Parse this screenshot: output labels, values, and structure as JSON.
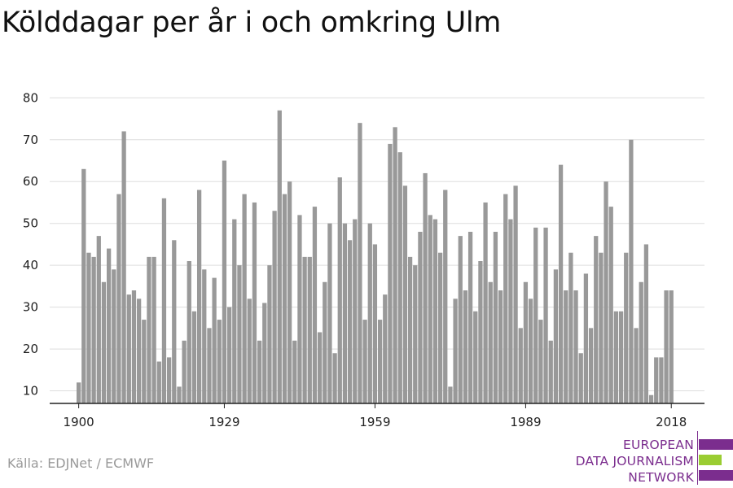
{
  "title": "Kölddagar per år i och omkring Ulm",
  "source": "Källa: EDJNet / ECMWF",
  "logo": {
    "lines": [
      "EUROPEAN",
      "DATA JOURNALISM",
      "NETWORK"
    ],
    "colors": {
      "purple": "#7b2d8e",
      "green": "#9acd32"
    }
  },
  "colors": {
    "bar": "#999999",
    "grid": "#dddddd",
    "axis": "#222222",
    "text": "#222222"
  },
  "chart_data": {
    "type": "bar",
    "title": "Kölddagar per år i och omkring Ulm",
    "xlabel": "",
    "ylabel": "",
    "ylim": [
      7,
      82
    ],
    "yticks": [
      10,
      20,
      30,
      40,
      50,
      60,
      70,
      80
    ],
    "xticks": [
      1900,
      1929,
      1959,
      1989,
      2018
    ],
    "grid": true,
    "x": [
      1900,
      1901,
      1902,
      1903,
      1904,
      1905,
      1906,
      1907,
      1908,
      1909,
      1910,
      1911,
      1912,
      1913,
      1914,
      1915,
      1916,
      1917,
      1918,
      1919,
      1920,
      1921,
      1922,
      1923,
      1924,
      1925,
      1926,
      1927,
      1928,
      1929,
      1930,
      1931,
      1932,
      1933,
      1934,
      1935,
      1936,
      1937,
      1938,
      1939,
      1940,
      1941,
      1942,
      1943,
      1944,
      1945,
      1946,
      1947,
      1948,
      1949,
      1950,
      1951,
      1952,
      1953,
      1954,
      1955,
      1956,
      1957,
      1958,
      1959,
      1960,
      1961,
      1962,
      1963,
      1964,
      1965,
      1966,
      1967,
      1968,
      1969,
      1970,
      1971,
      1972,
      1973,
      1974,
      1975,
      1976,
      1977,
      1978,
      1979,
      1980,
      1981,
      1982,
      1983,
      1984,
      1985,
      1986,
      1987,
      1988,
      1989,
      1990,
      1991,
      1992,
      1993,
      1994,
      1995,
      1996,
      1997,
      1998,
      1999,
      2000,
      2001,
      2002,
      2003,
      2004,
      2005,
      2006,
      2007,
      2008,
      2009,
      2010,
      2011,
      2012,
      2013,
      2014,
      2015,
      2016,
      2017,
      2018
    ],
    "values": [
      12,
      63,
      43,
      42,
      47,
      36,
      44,
      39,
      57,
      72,
      33,
      34,
      32,
      27,
      42,
      42,
      17,
      56,
      18,
      46,
      11,
      22,
      41,
      29,
      58,
      39,
      25,
      37,
      27,
      65,
      30,
      51,
      40,
      57,
      32,
      55,
      22,
      31,
      40,
      53,
      77,
      57,
      60,
      22,
      52,
      42,
      42,
      54,
      24,
      36,
      50,
      19,
      61,
      50,
      46,
      51,
      74,
      27,
      50,
      45,
      27,
      33,
      69,
      73,
      67,
      59,
      42,
      40,
      48,
      62,
      52,
      51,
      43,
      58,
      11,
      32,
      47,
      34,
      48,
      29,
      41,
      55,
      36,
      48,
      34,
      57,
      51,
      59,
      25,
      36,
      32,
      49,
      27,
      49,
      22,
      39,
      64,
      34,
      43,
      34,
      19,
      38,
      25,
      47,
      43,
      60,
      54,
      29,
      29,
      43,
      70,
      25,
      36,
      45,
      9,
      18,
      18,
      34,
      34
    ]
  }
}
